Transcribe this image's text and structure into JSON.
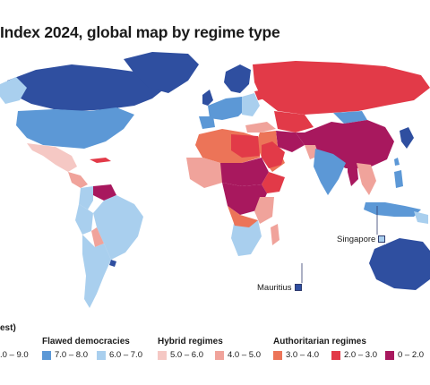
{
  "title": "Index 2024, global map by regime type",
  "legend": {
    "left_header": "est)",
    "left_item": {
      "range": ".0 – 9.0",
      "color": "#2f4fa0"
    },
    "groups": [
      {
        "title": "Flawed democracies",
        "items": [
          {
            "range": "7.0 – 8.0",
            "color": "#5c98d6"
          },
          {
            "range": "6.0 – 7.0",
            "color": "#a9cfee"
          }
        ]
      },
      {
        "title": "Hybrid regimes",
        "items": [
          {
            "range": "5.0 – 6.0",
            "color": "#f5c8c4"
          },
          {
            "range": "4.0 – 5.0",
            "color": "#f0a39b"
          }
        ]
      },
      {
        "title": "Authoritarian regimes",
        "items": [
          {
            "range": "3.0 – 4.0",
            "color": "#ec7458"
          },
          {
            "range": "2.0 – 3.0",
            "color": "#e23a48"
          },
          {
            "range": "0 – 2.0",
            "color": "#a8185e"
          }
        ]
      }
    ]
  },
  "callouts": {
    "singapore": "Singapore",
    "mauritius": "Mauritius"
  },
  "colors": {
    "full_democracy": "#2f4fa0",
    "flawed_high": "#5c98d6",
    "flawed_low": "#a9cfee",
    "hybrid_high": "#f5c8c4",
    "hybrid_low": "#f0a39b",
    "auth_high": "#ec7458",
    "auth_mid": "#e23a48",
    "auth_low": "#a8185e"
  }
}
